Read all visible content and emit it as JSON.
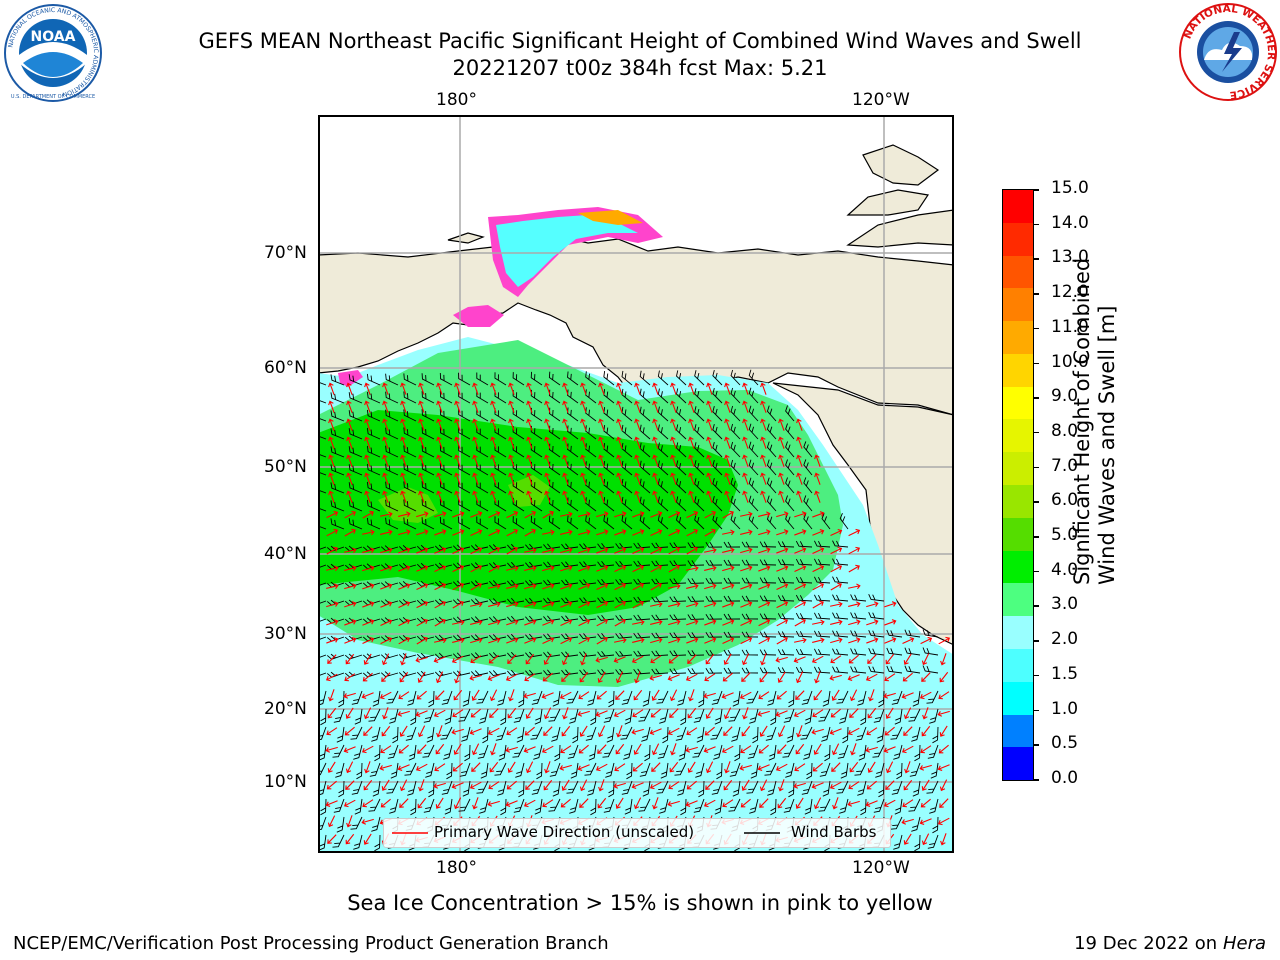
{
  "header": {
    "title": "GEFS MEAN Northeast Pacific Significant Height of Combined Wind Waves and Swell",
    "subtitle": "20221207 t00z 384h fcst   Max: 5.21"
  },
  "logos": {
    "left": {
      "name": "NOAA",
      "ring_text": "NATIONAL OCEANIC AND ATMOSPHERIC ADMINISTRATION",
      "bottom_text": "U.S. DEPARTMENT OF COMMERCE"
    },
    "right": {
      "ring_text": "NATIONAL WEATHER SERVICE"
    }
  },
  "map": {
    "lon_labels": [
      "180°",
      "120°W"
    ],
    "lat_labels": [
      "70°N",
      "60°N",
      "50°N",
      "40°N",
      "30°N",
      "20°N",
      "10°N"
    ],
    "legend": {
      "wave_label": "Primary Wave Direction (unscaled)",
      "wind_label": "Wind Barbs",
      "wave_color": "#ff0000",
      "wind_color": "#000000"
    },
    "land_color": "#efebd9"
  },
  "colorbar": {
    "label_line1": "Significant Height of Combined",
    "label_line2": "Wind Waves and Swell [m]",
    "ticks": [
      "15.0",
      "14.0",
      "13.0",
      "12.0",
      "11.0",
      "10.0",
      "9.0",
      "8.0",
      "7.0",
      "6.0",
      "5.0",
      "4.0",
      "3.0",
      "2.0",
      "1.5",
      "1.0",
      "0.5",
      "0.0"
    ],
    "colors_top_to_bottom": [
      "#ff0000",
      "#ff2a00",
      "#ff5500",
      "#ff8000",
      "#ffaa00",
      "#ffd500",
      "#ffff00",
      "#e6f500",
      "#cbee00",
      "#99e600",
      "#55dd00",
      "#00ee00",
      "#4dff80",
      "#99ffff",
      "#4dffff",
      "#00ffff",
      "#0080ff",
      "#0000ff"
    ]
  },
  "footer": {
    "ice_note": "Sea Ice Concentration > 15% is shown in pink to yellow",
    "credit": "NCEP/EMC/Verification Post Processing Product Generation Branch",
    "date": "19 Dec 2022 on",
    "host": "Hera"
  }
}
